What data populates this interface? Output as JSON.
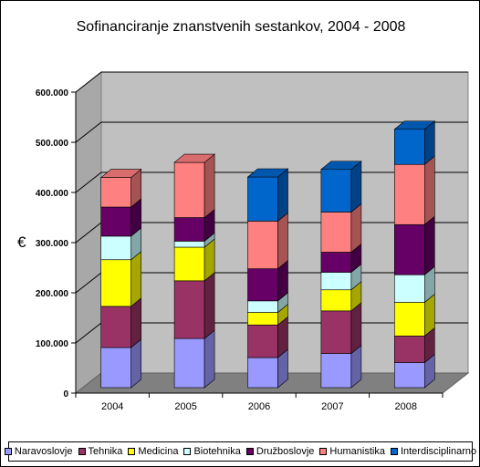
{
  "chart_data": {
    "type": "bar",
    "stacked": true,
    "three_d": true,
    "title": "Sofinanciranje znanstvenih sestankov, 2004 - 2008",
    "xlabel": "",
    "ylabel": "€",
    "categories": [
      "2004",
      "2005",
      "2006",
      "2007",
      "2008"
    ],
    "ylim": [
      0,
      600000
    ],
    "yticks": [
      0,
      100000,
      200000,
      300000,
      400000,
      500000,
      600000
    ],
    "ytick_labels": [
      "0",
      "100.000",
      "200.000",
      "300.000",
      "400.000",
      "500.000",
      "600.000"
    ],
    "grid": true,
    "legend_position": "bottom",
    "series": [
      {
        "name": "Naravoslovje",
        "color": "#9999ff",
        "values": [
          80000,
          98000,
          60000,
          68000,
          50000
        ]
      },
      {
        "name": "Tehnika",
        "color": "#993366",
        "values": [
          82000,
          115000,
          65000,
          85000,
          53000
        ]
      },
      {
        "name": "Medicina",
        "color": "#ffff00",
        "values": [
          93000,
          67000,
          25000,
          42000,
          67000
        ]
      },
      {
        "name": "Biotehnika",
        "color": "#ccffff",
        "values": [
          47000,
          12000,
          23000,
          35000,
          55000
        ]
      },
      {
        "name": "Družboslovje",
        "color": "#660066",
        "values": [
          58000,
          47000,
          64000,
          40000,
          100000
        ]
      },
      {
        "name": "Humanistika",
        "color": "#ff8080",
        "values": [
          59000,
          110000,
          95000,
          80000,
          120000
        ]
      },
      {
        "name": "Interdisciplinarno",
        "color": "#0066cc",
        "values": [
          0,
          0,
          88000,
          85000,
          70000
        ]
      }
    ]
  }
}
